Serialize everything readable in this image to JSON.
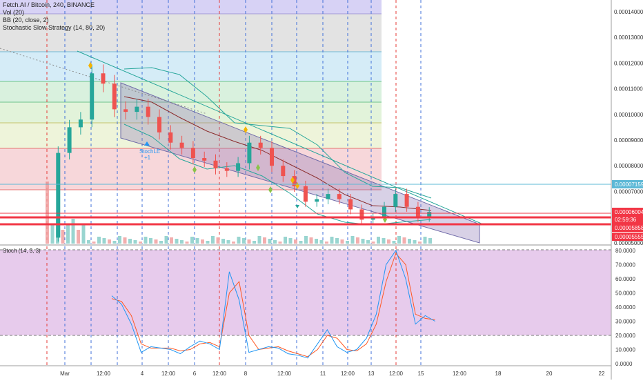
{
  "chart": {
    "symbol_title": "Fetch.AI / Bitcoin, 240, BINANCE",
    "indicators": [
      "Vol (20)",
      "BB (20, close, 2)",
      "Stochastic Slow Strategy (14, 80, 20)"
    ],
    "signal_label": "StochLE",
    "signal_sub": "+1",
    "osc_title": "Stoch (14, 3, 3)"
  },
  "price_axis": [
    "0.00014000",
    "0.00013000",
    "0.00012000",
    "0.00011000",
    "0.00010000",
    "0.00009000",
    "0.00008000",
    "0.00007000",
    "0.00006000",
    "0.00005000"
  ],
  "price_badges": [
    {
      "text": "0.00007159",
      "color": "#5cb8d6"
    },
    {
      "text": "0.00006004",
      "color": "#f23645"
    },
    {
      "text": "02:59:36",
      "color": "#f23645"
    },
    {
      "text": "0.00005858",
      "color": "#f23645"
    },
    {
      "text": "0.00005555",
      "color": "#f23645"
    }
  ],
  "osc_axis": [
    "80.0000",
    "70.0000",
    "60.0000",
    "50.0000",
    "40.0000",
    "30.0000",
    "20.0000",
    "10.0000",
    "0.0000"
  ],
  "date_axis": [
    "Mar",
    "12:00",
    "4",
    "12:00",
    "6",
    "12:00",
    "8",
    "12:00",
    "11",
    "12:00",
    "13",
    "12:00",
    "15",
    "12:00",
    "18",
    "20",
    "22"
  ],
  "colors": {
    "up": "#26a69a",
    "down": "#ef5350",
    "band": "#5d8aa8",
    "stoch_k": "#2196f3",
    "stoch_d": "#ff5722",
    "osc_bg": "#e1bee7"
  },
  "chart_data": [
    {
      "type": "candlestick",
      "y_axis_range": [
        5e-05,
        0.000145
      ],
      "prices": [
        5.2e-05,
        8.5e-05,
        9.5e-05,
        9.8e-05,
        0.000116,
        0.000112,
        0.000102,
        0.000101,
        0.000103,
        9.9e-05,
        9.3e-05,
        8.9e-05,
        8.7e-05,
        8.3e-05,
        8.2e-05,
        7.9e-05,
        7.8e-05,
        8.1e-05,
        8.9e-05,
        8.7e-05,
        8e-05,
        7.6e-05,
        7.2e-05,
        6.6e-05,
        6.7e-05,
        6.9e-05,
        6.7e-05,
        6.3e-05,
        5.9e-05,
        6e-05,
        6.4e-05,
        6.9e-05,
        6.4e-05,
        6e-05,
        6.2e-05
      ]
    },
    {
      "type": "line",
      "title": "Stoch (14, 3, 3)",
      "y_axis_range": [
        0,
        85
      ],
      "series": [
        {
          "name": "%K",
          "values": [
            48,
            42,
            28,
            8,
            12,
            11,
            10,
            7,
            12,
            16,
            14,
            10,
            65,
            45,
            8,
            10,
            12,
            11,
            7,
            6,
            4,
            14,
            24,
            12,
            8,
            10,
            18,
            35,
            70,
            80,
            60,
            28,
            34,
            30
          ]
        },
        {
          "name": "%D",
          "values": [
            46,
            44,
            34,
            14,
            11,
            11,
            11,
            9,
            10,
            14,
            15,
            12,
            50,
            58,
            20,
            10,
            11,
            12,
            9,
            7,
            5,
            10,
            20,
            18,
            10,
            9,
            14,
            28,
            58,
            78,
            70,
            35,
            32,
            31
          ]
        }
      ],
      "levels": [
        80,
        20
      ]
    }
  ]
}
